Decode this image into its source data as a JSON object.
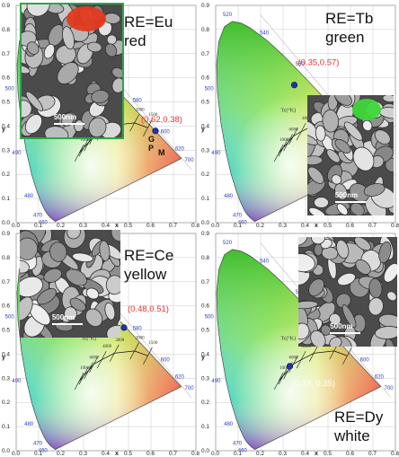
{
  "panels": [
    {
      "re_label": "RE=Eu\nred",
      "coord_label": "(0.62,0.38)",
      "coord_color": "#e8322b",
      "scale_label": "500nm",
      "point_markers": [
        "G",
        "P",
        "M"
      ],
      "inset_tint": "#e23a1f"
    },
    {
      "re_label": "RE=Tb\ngreen",
      "coord_label": "(0.35,0.57)",
      "coord_color": "#e8322b",
      "scale_label": "500nm",
      "inset_tint": "#3ed63a"
    },
    {
      "re_label": "RE=Ce\nyellow",
      "coord_label": "(0.48,0.51)",
      "coord_color": "#e8322b",
      "scale_label": "500nm"
    },
    {
      "re_label": "RE=Dy\nwhite",
      "coord_label": "(0.33, 0.35)",
      "coord_color": "#ffffff",
      "scale_label": "500nm"
    }
  ],
  "axes": {
    "xlabel": "x",
    "ylabel": "y",
    "x_ticks": [
      "0.0",
      "0.1",
      "0.2",
      "0.3",
      "0.4",
      "0.5",
      "0.6",
      "0.7",
      "0.8"
    ],
    "y_ticks": [
      "0.0",
      "0.1",
      "0.2",
      "0.3",
      "0.4",
      "0.5",
      "0.6",
      "0.7",
      "0.8",
      "0.9"
    ],
    "cct_label": "Tc(°K)",
    "planck_labels": [
      "10000",
      "6000",
      "4000",
      "3000",
      "2000",
      "1500"
    ],
    "wavelength_labels": [
      "460",
      "470",
      "480",
      "490",
      "500",
      "520",
      "540",
      "560",
      "580",
      "600",
      "620",
      "700"
    ]
  },
  "chart_data": [
    {
      "type": "scatter",
      "title": "",
      "xlabel": "x",
      "ylabel": "y",
      "xlim": [
        0,
        0.8
      ],
      "ylim": [
        0,
        0.9
      ],
      "points": [
        {
          "x": 0.62,
          "y": 0.38,
          "label": "(0.62,0.38)"
        }
      ]
    },
    {
      "type": "scatter",
      "title": "",
      "xlabel": "x",
      "ylabel": "y",
      "xlim": [
        0,
        0.8
      ],
      "ylim": [
        0,
        0.9
      ],
      "points": [
        {
          "x": 0.35,
          "y": 0.57,
          "label": "(0.35,0.57)"
        }
      ]
    },
    {
      "type": "scatter",
      "title": "",
      "xlabel": "x",
      "ylabel": "y",
      "xlim": [
        0,
        0.8
      ],
      "ylim": [
        0,
        0.9
      ],
      "points": [
        {
          "x": 0.48,
          "y": 0.51,
          "label": "(0.48,0.51)"
        }
      ]
    },
    {
      "type": "scatter",
      "title": "",
      "xlabel": "x",
      "ylabel": "y",
      "xlim": [
        0,
        0.8
      ],
      "ylim": [
        0,
        0.9
      ],
      "points": [
        {
          "x": 0.33,
          "y": 0.35,
          "label": "(0.33, 0.35)"
        }
      ]
    }
  ]
}
